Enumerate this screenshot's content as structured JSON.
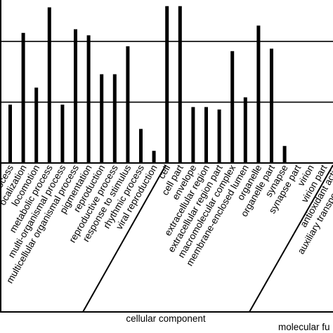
{
  "chart_data": {
    "type": "bar",
    "title": "",
    "xlabel": "",
    "ylabel": "",
    "ylim": [
      0,
      130
    ],
    "grid": "horizontal",
    "bar_color": "#000000",
    "categories": [
      "cellular process",
      "localization",
      "locomotion",
      "metabolic process",
      "multi-organismal process",
      "multicellular organismal process",
      "pigmentation",
      "reproduction",
      "reproductive process",
      "response to stimulus",
      "rhythmic process",
      "viral reproduction",
      "cell",
      "cell part",
      "envelope",
      "extracellular region",
      "extracellular region part",
      "macromolecular complex",
      "membrane-enclosed lumen",
      "organelle",
      "organelle part",
      "synapse",
      "synapse part",
      "virion",
      "virion part",
      "antioxidant activity",
      "auxiliary transport protein activity"
    ],
    "display_labels": [
      "ocess",
      "ocalization",
      "locomotion",
      "metabolic process",
      "multi-organismal process",
      "multicellular organismal process",
      "pigmentation",
      "reproduction",
      "reproductive process",
      "response to stimulus",
      "rhythmic process",
      "viral reproduction",
      "cell",
      "cell part",
      "envelope",
      "extracellular region",
      "extracellular region part",
      "macromolecular complex",
      "membrane-enclosed lumen",
      "organelle",
      "organelle part",
      "synapse",
      "synapse part",
      "virion",
      "virion part",
      "antioxidant activi",
      "auxiliary transport protei"
    ],
    "values": [
      48,
      107,
      62,
      128,
      48,
      110,
      105,
      73,
      73,
      96,
      28,
      10,
      129,
      129,
      46,
      46,
      44,
      92,
      54,
      113,
      94,
      14,
      0,
      0,
      0,
      0,
      0
    ],
    "groups": [
      {
        "name": "cellular component",
        "display": "cellular component"
      },
      {
        "name": "molecular function",
        "display": "molecular fu"
      }
    ]
  }
}
